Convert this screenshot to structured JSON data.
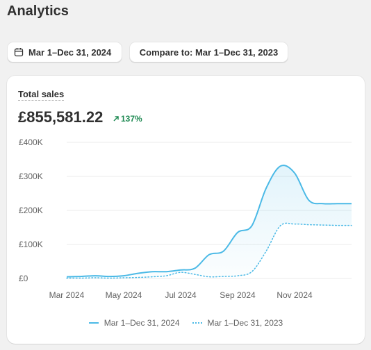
{
  "page": {
    "title": "Analytics"
  },
  "filters": {
    "date_range": "Mar 1–Dec 31, 2024",
    "compare": "Compare to: Mar 1–Dec 31, 2023"
  },
  "card": {
    "title": "Total sales",
    "value": "£855,581.22",
    "change": "137%"
  },
  "colors": {
    "primary": "#4ab9e6",
    "positive": "#1f8a53"
  },
  "icons": {
    "date": "calendar-icon",
    "change": "arrow-up-right-icon"
  },
  "chart_data": {
    "type": "line",
    "y_ticks": [
      "£400K",
      "£300K",
      "£200K",
      "£100K",
      "£0"
    ],
    "y_tick_values": [
      400000,
      300000,
      200000,
      100000,
      0
    ],
    "x_ticks": [
      "Mar 2024",
      "May 2024",
      "Jul 2024",
      "Sep 2024",
      "Nov 2024"
    ],
    "ylim": [
      0,
      400000
    ],
    "xlim": [
      0,
      10
    ],
    "grid": true,
    "legend_position": "bottom-center",
    "series": [
      {
        "name": "Mar 1–Dec 31, 2024",
        "style": "solid",
        "x": [
          0,
          0.5,
          1,
          1.5,
          2,
          2.5,
          3,
          3.5,
          4,
          4.5,
          5,
          5.5,
          6,
          6.5,
          7,
          7.5,
          8,
          8.5,
          9,
          9.5,
          10
        ],
        "y": [
          5000,
          6000,
          8000,
          6000,
          8000,
          15000,
          20000,
          20000,
          25000,
          30000,
          70000,
          80000,
          135000,
          155000,
          265000,
          330000,
          310000,
          230000,
          220000,
          220000,
          220000
        ]
      },
      {
        "name": "Mar 1–Dec 31, 2023",
        "style": "dotted",
        "x": [
          0,
          0.5,
          1,
          1.5,
          2,
          2.5,
          3,
          3.5,
          4,
          4.5,
          5,
          5.5,
          6,
          6.5,
          7,
          7.5,
          8,
          8.5,
          9,
          9.5,
          10
        ],
        "y": [
          1000,
          1000,
          2000,
          1000,
          2000,
          3000,
          5000,
          8000,
          18000,
          12000,
          5000,
          6000,
          8000,
          20000,
          80000,
          155000,
          160000,
          158000,
          157000,
          156000,
          156000
        ]
      }
    ]
  }
}
